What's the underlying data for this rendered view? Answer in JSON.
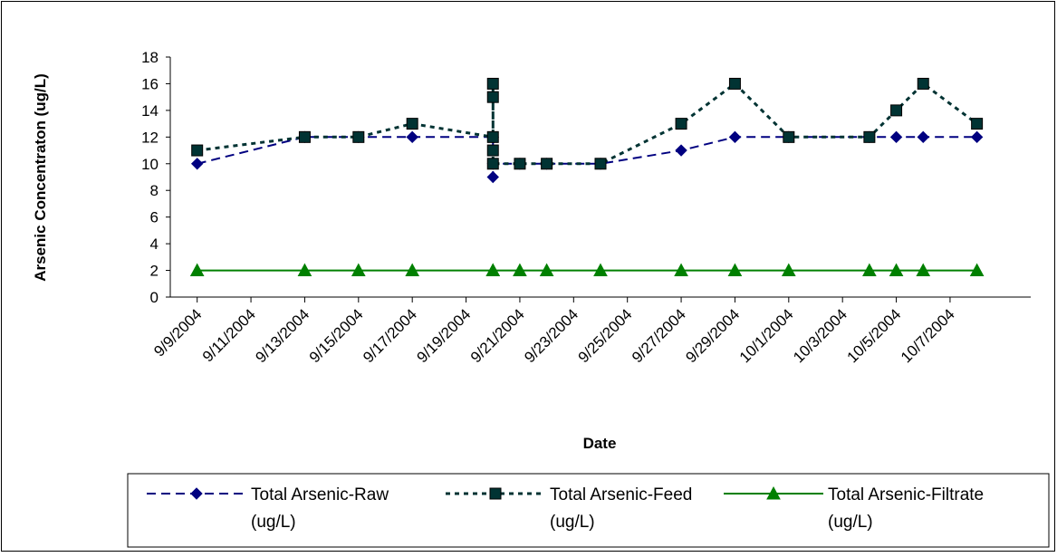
{
  "chart_data": {
    "type": "line",
    "title": "",
    "xlabel": "Date",
    "ylabel": "Arsenic Concentraton (ug/L)",
    "ylim": [
      0,
      18
    ],
    "yticks": [
      "0",
      "2",
      "4",
      "6",
      "8",
      "10",
      "12",
      "14",
      "16",
      "18"
    ],
    "xlim": [
      "9/8/2004",
      "10/10/2004"
    ],
    "xticks": [
      "9/9/2004",
      "9/11/2004",
      "9/13/2004",
      "9/15/2004",
      "9/17/2004",
      "9/19/2004",
      "9/21/2004",
      "9/23/2004",
      "9/25/2004",
      "9/27/2004",
      "9/29/2004",
      "10/1/2004",
      "10/3/2004",
      "10/5/2004",
      "10/7/2004"
    ],
    "grid": false,
    "legend_position": "bottom",
    "series": [
      {
        "name": "Total Arsenic-Raw (ug/L)",
        "legend_lines": [
          "Total Arsenic-Raw",
          "(ug/L)"
        ],
        "color": "#000080",
        "line_style": "dashed",
        "marker": "diamond",
        "points": [
          {
            "x": "9/9/2004",
            "y": 10
          },
          {
            "x": "9/13/2004",
            "y": 12
          },
          {
            "x": "9/15/2004",
            "y": 12
          },
          {
            "x": "9/17/2004",
            "y": 12
          },
          {
            "x": "9/20/2004",
            "y": 12
          },
          {
            "x": "9/20/2004",
            "y": 9
          },
          {
            "x": "9/20/2004",
            "y": 10
          },
          {
            "x": "9/21/2004",
            "y": 10
          },
          {
            "x": "9/22/2004",
            "y": 10
          },
          {
            "x": "9/24/2004",
            "y": 10
          },
          {
            "x": "9/27/2004",
            "y": 11
          },
          {
            "x": "9/29/2004",
            "y": 12
          },
          {
            "x": "10/1/2004",
            "y": 12
          },
          {
            "x": "10/4/2004",
            "y": 12
          },
          {
            "x": "10/5/2004",
            "y": 12
          },
          {
            "x": "10/6/2004",
            "y": 12
          },
          {
            "x": "10/8/2004",
            "y": 12
          }
        ]
      },
      {
        "name": "Total Arsenic-Feed (ug/L)",
        "legend_lines": [
          "Total Arsenic-Feed",
          "(ug/L)"
        ],
        "color": "#003333",
        "line_style": "dotted",
        "marker": "square",
        "points": [
          {
            "x": "9/9/2004",
            "y": 11
          },
          {
            "x": "9/13/2004",
            "y": 12
          },
          {
            "x": "9/15/2004",
            "y": 12
          },
          {
            "x": "9/17/2004",
            "y": 13
          },
          {
            "x": "9/20/2004",
            "y": 12
          },
          {
            "x": "9/20/2004",
            "y": 15
          },
          {
            "x": "9/20/2004",
            "y": 16
          },
          {
            "x": "9/20/2004",
            "y": 11
          },
          {
            "x": "9/20/2004",
            "y": 10
          },
          {
            "x": "9/21/2004",
            "y": 10
          },
          {
            "x": "9/22/2004",
            "y": 10
          },
          {
            "x": "9/24/2004",
            "y": 10
          },
          {
            "x": "9/27/2004",
            "y": 13
          },
          {
            "x": "9/29/2004",
            "y": 16
          },
          {
            "x": "10/1/2004",
            "y": 12
          },
          {
            "x": "10/4/2004",
            "y": 12
          },
          {
            "x": "10/5/2004",
            "y": 14
          },
          {
            "x": "10/6/2004",
            "y": 16
          },
          {
            "x": "10/8/2004",
            "y": 13
          }
        ]
      },
      {
        "name": "Total Arsenic-Filtrate (ug/L)",
        "legend_lines": [
          "Total Arsenic-Filtrate",
          "(ug/L)"
        ],
        "color": "#008000",
        "line_style": "solid",
        "marker": "triangle",
        "points": [
          {
            "x": "9/9/2004",
            "y": 2
          },
          {
            "x": "9/13/2004",
            "y": 2
          },
          {
            "x": "9/15/2004",
            "y": 2
          },
          {
            "x": "9/17/2004",
            "y": 2
          },
          {
            "x": "9/20/2004",
            "y": 2
          },
          {
            "x": "9/20/2004",
            "y": 2
          },
          {
            "x": "9/21/2004",
            "y": 2
          },
          {
            "x": "9/22/2004",
            "y": 2
          },
          {
            "x": "9/24/2004",
            "y": 2
          },
          {
            "x": "9/27/2004",
            "y": 2
          },
          {
            "x": "9/29/2004",
            "y": 2
          },
          {
            "x": "10/1/2004",
            "y": 2
          },
          {
            "x": "10/4/2004",
            "y": 2
          },
          {
            "x": "10/5/2004",
            "y": 2
          },
          {
            "x": "10/6/2004",
            "y": 2
          },
          {
            "x": "10/8/2004",
            "y": 2
          }
        ]
      }
    ]
  }
}
